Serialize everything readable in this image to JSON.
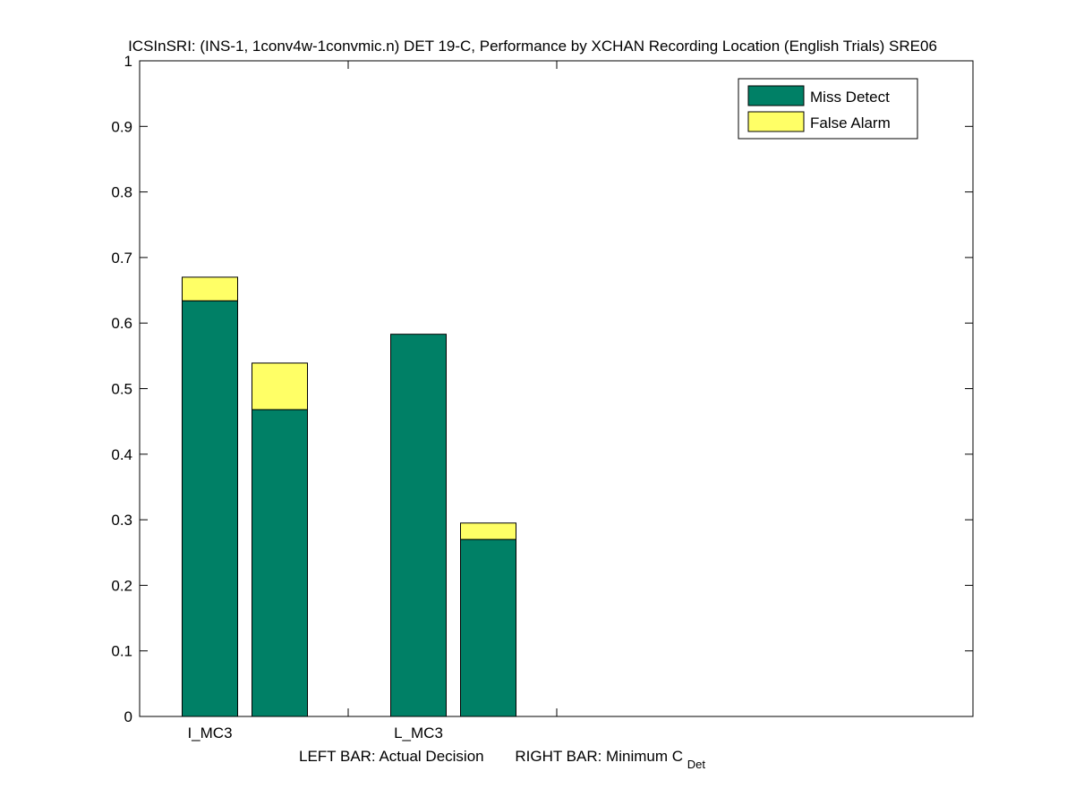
{
  "chart_data": {
    "type": "bar",
    "stacked": true,
    "title": "ICSInSRI: (INS-1, 1conv4w-1convmic.n) DET 19-C,  Performance by XCHAN Recording Location (English Trials) SRE06",
    "xlabel_parts": {
      "left": "LEFT BAR: Actual Decision",
      "right": "RIGHT BAR: Minimum C",
      "subscript": "Det"
    },
    "ylabel": "",
    "ylim": [
      0,
      1
    ],
    "yticks": [
      0,
      0.1,
      0.2,
      0.3,
      0.4,
      0.5,
      0.6,
      0.7,
      0.8,
      0.9,
      1
    ],
    "ytick_labels": [
      "0",
      "0.1",
      "0.2",
      "0.3",
      "0.4",
      "0.5",
      "0.6",
      "0.7",
      "0.8",
      "0.9",
      "1"
    ],
    "categories": [
      "I_MC3",
      "L_MC3"
    ],
    "bars_per_category": [
      "Actual Decision",
      "Minimum C_Det"
    ],
    "series": [
      {
        "name": "Miss Detect",
        "color": "#008066",
        "values": [
          [
            0.634,
            0.468
          ],
          [
            0.583,
            0.27
          ]
        ]
      },
      {
        "name": "False Alarm",
        "color": "#ffff66",
        "values": [
          [
            0.036,
            0.071
          ],
          [
            0.0,
            0.025
          ]
        ]
      }
    ],
    "legend_position": "top-right",
    "grid": false
  }
}
